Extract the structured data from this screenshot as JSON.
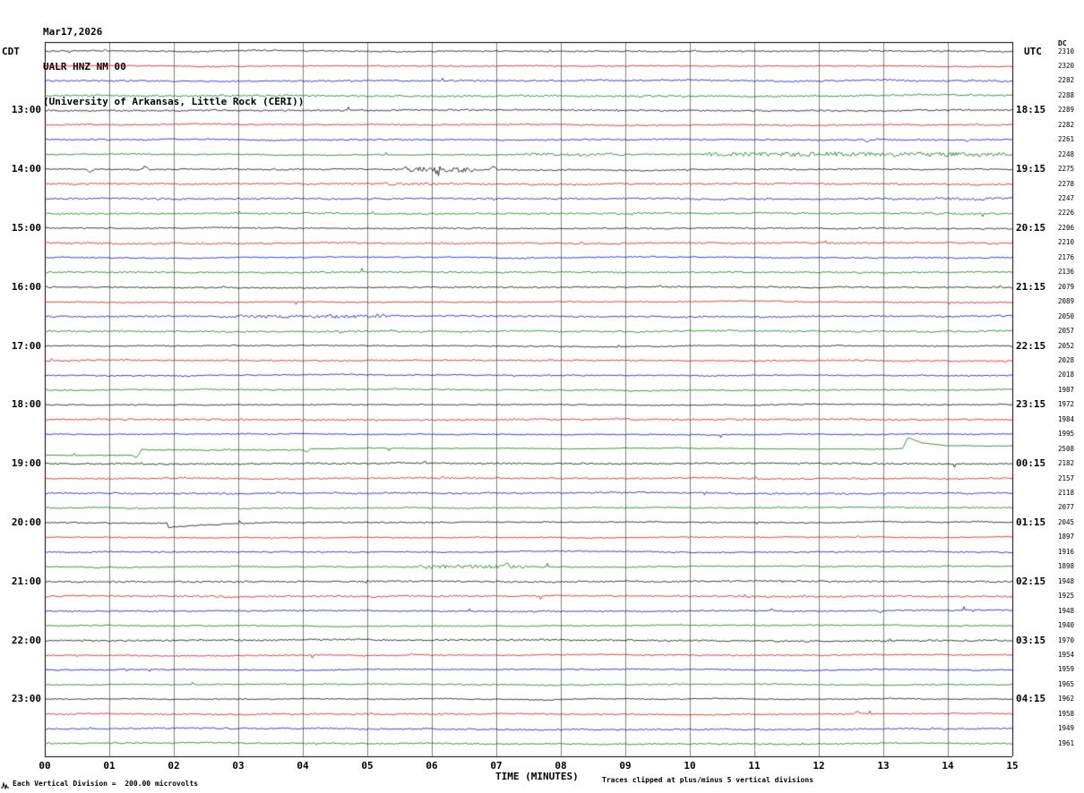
{
  "header": {
    "date": "Mar17,2026",
    "station_line": "UALR HNZ NM 00",
    "institution_line": "(University of Arkansas, Little Rock (CERI))"
  },
  "axes": {
    "left_timezone": "CDT",
    "right_timezone": "UTC",
    "dc_column_header": "DC",
    "x_axis_label": "TIME (MINUTES)",
    "x_ticks": [
      "00",
      "01",
      "02",
      "03",
      "04",
      "05",
      "06",
      "07",
      "08",
      "09",
      "10",
      "11",
      "12",
      "13",
      "14",
      "15"
    ],
    "left_hour_labels": [
      {
        "row": 4,
        "label": "13:00"
      },
      {
        "row": 8,
        "label": "14:00"
      },
      {
        "row": 12,
        "label": "15:00"
      },
      {
        "row": 16,
        "label": "16:00"
      },
      {
        "row": 20,
        "label": "17:00"
      },
      {
        "row": 24,
        "label": "18:00"
      },
      {
        "row": 28,
        "label": "19:00"
      },
      {
        "row": 32,
        "label": "20:00"
      },
      {
        "row": 36,
        "label": "21:00"
      },
      {
        "row": 40,
        "label": "22:00"
      },
      {
        "row": 44,
        "label": "23:00"
      }
    ],
    "right_hour_labels": [
      {
        "row": 4,
        "label": "18:15"
      },
      {
        "row": 8,
        "label": "19:15"
      },
      {
        "row": 12,
        "label": "20:15"
      },
      {
        "row": 16,
        "label": "21:15"
      },
      {
        "row": 20,
        "label": "22:15"
      },
      {
        "row": 24,
        "label": "23:15"
      },
      {
        "row": 28,
        "label": "00:15"
      },
      {
        "row": 32,
        "label": "01:15"
      },
      {
        "row": 36,
        "label": "02:15"
      },
      {
        "row": 40,
        "label": "03:15"
      },
      {
        "row": 44,
        "label": "04:15"
      }
    ]
  },
  "footer": {
    "scale_note": "Each Vertical Division =  200.00 microvolts",
    "clip_note": "Traces clipped at plus/minus 5 vertical divisions"
  },
  "chart_data": {
    "type": "line",
    "title": "UALR HNZ NM 00 helicorder record, Mar17,2026",
    "x_range_minutes": [
      0,
      15
    ],
    "minutes_per_line": 15,
    "lines_per_hour": 4,
    "num_traces": 48,
    "first_trace_time_cdt": "12:00",
    "trace_color_cycle": [
      "#000000",
      "#dd0000",
      "#0000cc",
      "#007400"
    ],
    "layout": {
      "grid": true,
      "grid_color": "#808080",
      "border_color": "#000000",
      "background": "#ffffff"
    },
    "dc_offsets": [
      2310,
      2320,
      2282,
      2288,
      2289,
      2282,
      2261,
      2248,
      2275,
      2278,
      2247,
      2226,
      2206,
      2210,
      2176,
      2136,
      2079,
      2089,
      2050,
      2057,
      2052,
      2028,
      2018,
      1987,
      1972,
      1984,
      1995,
      2508,
      2182,
      2157,
      2118,
      2077,
      2045,
      1897,
      1916,
      1898,
      1948,
      1925,
      1948,
      1940,
      1970,
      1954,
      1959,
      1965,
      1962,
      1958,
      1949,
      1961
    ],
    "events": [
      {
        "row": 6,
        "type": "spike",
        "min": 12.75,
        "amp": 3
      },
      {
        "row": 6,
        "type": "spike",
        "min": 14.3,
        "amp": 2.2
      },
      {
        "row": 7,
        "type": "burst",
        "start": 7.4,
        "end": 9.0,
        "amp": 1.5
      },
      {
        "row": 7,
        "type": "burst",
        "start": 10.2,
        "end": 14.9,
        "amp": 2.3
      },
      {
        "row": 8,
        "type": "spike",
        "min": 0.7,
        "amp": 3
      },
      {
        "row": 8,
        "type": "spike",
        "min": 1.55,
        "amp": -3.5
      },
      {
        "row": 8,
        "type": "burst",
        "start": 5.55,
        "end": 6.65,
        "amp": 3.0
      },
      {
        "row": 8,
        "type": "spike",
        "min": 6.1,
        "amp": 5
      },
      {
        "row": 8,
        "type": "spike",
        "min": 6.95,
        "amp": -4
      },
      {
        "row": 9,
        "type": "burst",
        "start": 5.1,
        "end": 6.0,
        "amp": 1.5
      },
      {
        "row": 10,
        "type": "burst",
        "start": 13.8,
        "end": 15,
        "amp": 1.5
      },
      {
        "row": 11,
        "type": "burst",
        "start": 13.6,
        "end": 14.9,
        "amp": 1.4
      },
      {
        "row": 18,
        "type": "burst",
        "start": 2.9,
        "end": 5.3,
        "amp": 1.7
      },
      {
        "row": 18,
        "type": "spike",
        "min": 3.05,
        "amp": -2.5
      },
      {
        "row": 18,
        "type": "spike",
        "min": 4.4,
        "amp": -2
      },
      {
        "row": 27,
        "type": "calm",
        "amp": 0.3
      },
      {
        "row": 27,
        "type": "burst",
        "start": 1.5,
        "end": 4.0,
        "amp": 0.8
      },
      {
        "row": 27,
        "type": "drift",
        "profile": [
          [
            0,
            7
          ],
          [
            1.35,
            7
          ],
          [
            1.42,
            10
          ],
          [
            1.5,
            1
          ],
          [
            4.0,
            1
          ],
          [
            4.06,
            4
          ],
          [
            4.12,
            0
          ],
          [
            13.3,
            -0.5
          ],
          [
            13.38,
            -13
          ],
          [
            13.6,
            -7
          ],
          [
            14.0,
            -3.5
          ],
          [
            15,
            -3
          ]
        ]
      },
      {
        "row": 32,
        "type": "step",
        "min": 1.9,
        "amp": 5,
        "tau": 0.8
      },
      {
        "row": 35,
        "type": "burst",
        "start": 5.8,
        "end": 7.5,
        "amp": 2.0
      },
      {
        "row": 35,
        "type": "spike",
        "min": 7.15,
        "amp": -3
      },
      {
        "row": 38,
        "type": "spike",
        "min": 12.95,
        "amp": 2
      },
      {
        "row": 45,
        "type": "spike",
        "min": 12.6,
        "amp": -2.5
      }
    ]
  }
}
